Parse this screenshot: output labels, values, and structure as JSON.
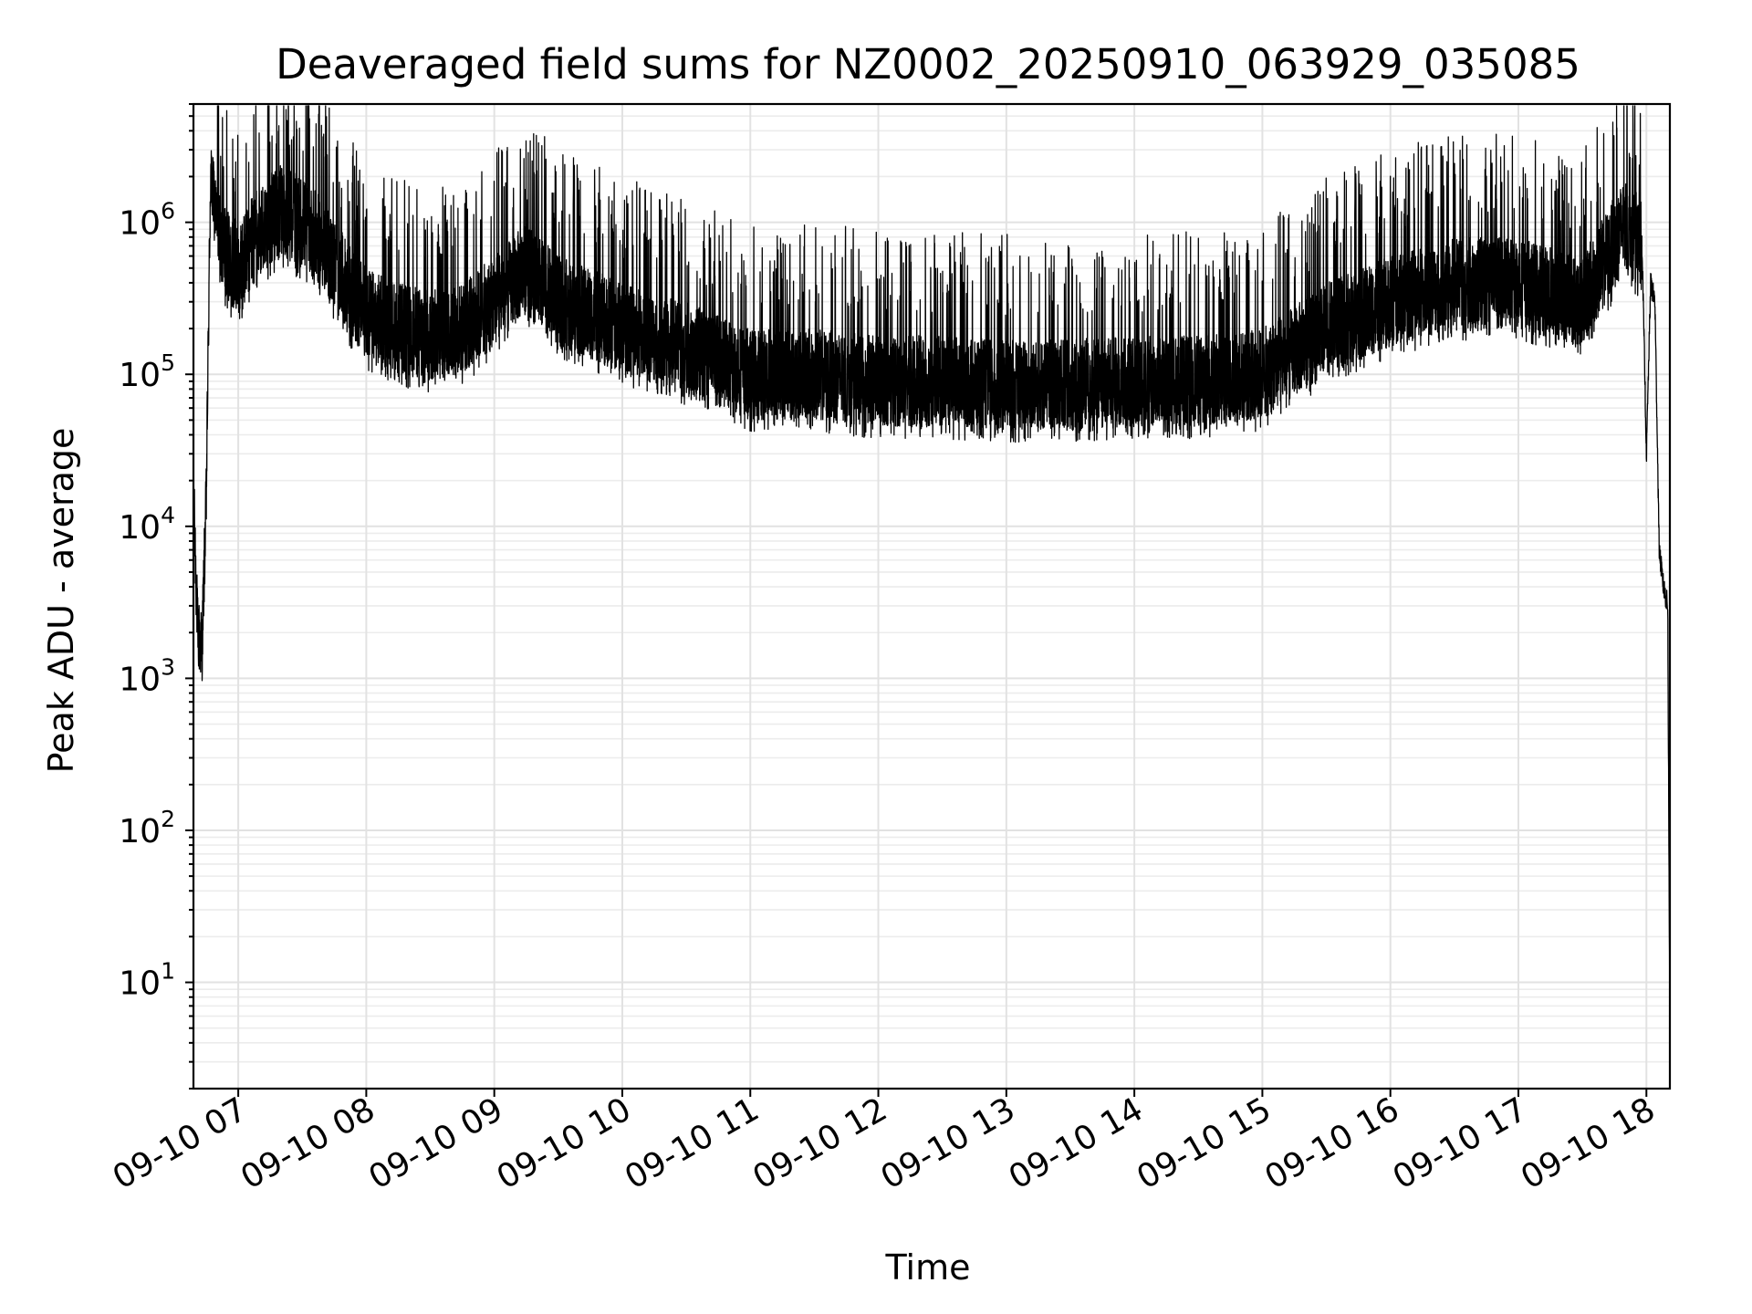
{
  "chart_data": {
    "type": "line",
    "title": "Deaveraged field sums for NZ0002_20250910_063929_035085",
    "xlabel": "Time",
    "ylabel": "Peak ADU - average",
    "yscale": "log",
    "xlim": [
      "09-10 06:39",
      "09-10 18:11"
    ],
    "ylim": [
      2,
      6000000
    ],
    "grid": "major and minor",
    "line_color": "#000000",
    "x_ticks": [
      "09-10 07",
      "09-10 08",
      "09-10 09",
      "09-10 10",
      "09-10 11",
      "09-10 12",
      "09-10 13",
      "09-10 14",
      "09-10 15",
      "09-10 16",
      "09-10 17",
      "09-10 18"
    ],
    "y_ticks": [
      {
        "value": 10,
        "base": "10",
        "exp": "1"
      },
      {
        "value": 100,
        "base": "10",
        "exp": "2"
      },
      {
        "value": 1000,
        "base": "10",
        "exp": "3"
      },
      {
        "value": 10000,
        "base": "10",
        "exp": "4"
      },
      {
        "value": 100000,
        "base": "10",
        "exp": "5"
      },
      {
        "value": 1000000,
        "base": "10",
        "exp": "6"
      }
    ],
    "series": [
      {
        "x": [
          "09-10 06:39",
          "09-10 06:41",
          "09-10 06:43",
          "09-10 06:45",
          "09-10 06:47",
          "09-10 06:50",
          "09-10 06:55",
          "09-10 07:00",
          "09-10 07:10",
          "09-10 07:20",
          "09-10 07:30",
          "09-10 07:40",
          "09-10 07:50",
          "09-10 08:00",
          "09-10 08:15",
          "09-10 08:30",
          "09-10 08:45",
          "09-10 09:00",
          "09-10 09:15",
          "09-10 09:30",
          "09-10 09:45",
          "09-10 10:00",
          "09-10 10:30",
          "09-10 11:00",
          "09-10 11:30",
          "09-10 12:00",
          "09-10 12:30",
          "09-10 13:00",
          "09-10 13:30",
          "09-10 14:00",
          "09-10 14:30",
          "09-10 15:00",
          "09-10 15:30",
          "09-10 16:00",
          "09-10 16:30",
          "09-10 17:00",
          "09-10 17:30",
          "09-10 17:50",
          "09-10 17:58",
          "09-10 18:00",
          "09-10 18:02",
          "09-10 18:04",
          "09-10 18:06",
          "09-10 18:08",
          "09-10 18:10",
          "09-10 18:11"
        ],
        "y": [
          17000,
          2000,
          1600,
          15000,
          2000000,
          1000000,
          600000,
          500000,
          900000,
          1200000,
          1000000,
          700000,
          400000,
          250000,
          200000,
          180000,
          200000,
          300000,
          500000,
          300000,
          250000,
          200000,
          150000,
          100000,
          100000,
          90000,
          90000,
          85000,
          85000,
          90000,
          90000,
          100000,
          200000,
          300000,
          400000,
          400000,
          300000,
          1000000,
          700000,
          30000,
          400000,
          300000,
          7000,
          4000,
          3000,
          4
        ]
      }
    ]
  }
}
